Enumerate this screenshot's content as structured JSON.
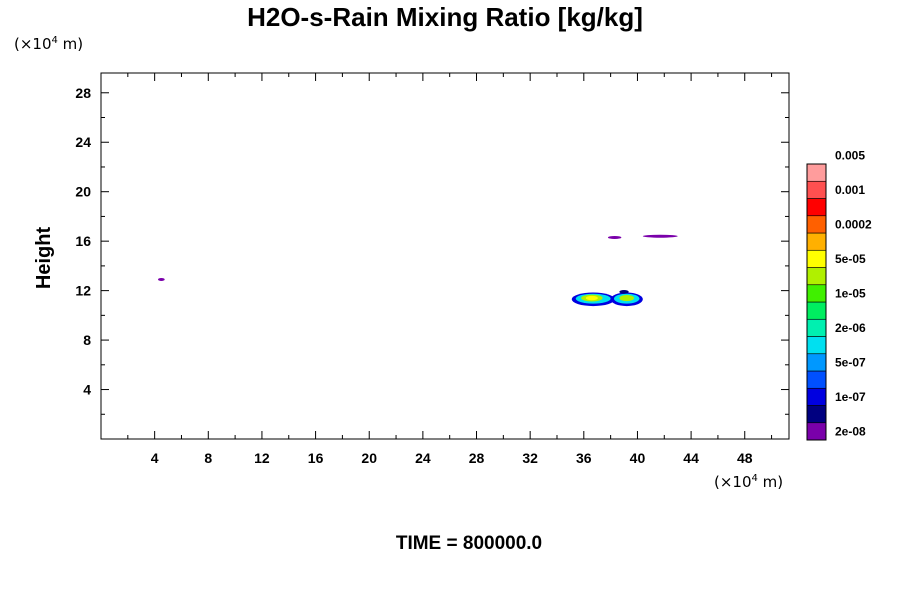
{
  "chart_data": {
    "type": "heatmap",
    "title": "H2O-s-Rain Mixing Ratio [kg/kg]",
    "ylabel": "Height",
    "x_unit": {
      "prefix": "(×10",
      "exponent": "4",
      "suffix": " m)"
    },
    "y_unit": {
      "prefix": "(×10",
      "exponent": "4",
      "suffix": " m)"
    },
    "xlim": [
      0,
      51.3
    ],
    "ylim": [
      0,
      29.6
    ],
    "x_ticks": [
      4,
      8,
      12,
      16,
      20,
      24,
      28,
      32,
      36,
      40,
      44,
      48
    ],
    "y_ticks": [
      4,
      8,
      12,
      16,
      20,
      24,
      28
    ],
    "colorbar": {
      "colors": [
        "#7a00aa",
        "#000080",
        "#0000e0",
        "#0050ff",
        "#0098ff",
        "#00e0f0",
        "#00f0b0",
        "#00ee60",
        "#40f000",
        "#b0f000",
        "#ffff00",
        "#ffb000",
        "#ff6000",
        "#ff0000",
        "#ff5050",
        "#ff9c9c"
      ],
      "labels": [
        "2e-08",
        "1e-07",
        "5e-07",
        "2e-06",
        "1e-05",
        "5e-05",
        "0.0002",
        "0.001",
        "0.005"
      ]
    },
    "features": [
      {
        "x_center": 4.5,
        "y_center": 12.9,
        "x_halfwidth": 0.25,
        "y_halfwidth": 0.12,
        "color_index": 0
      },
      {
        "x_center": 38.3,
        "y_center": 16.3,
        "x_halfwidth": 0.5,
        "y_halfwidth": 0.08,
        "color_index": 0
      },
      {
        "x_center": 41.7,
        "y_center": 16.4,
        "x_halfwidth": 1.3,
        "y_halfwidth": 0.1,
        "color_index": 0
      },
      {
        "x_center": 36.7,
        "y_center": 11.3,
        "x_halfwidth": 1.6,
        "y_halfwidth": 0.55,
        "color_index": 2
      },
      {
        "x_center": 36.7,
        "y_center": 11.35,
        "x_halfwidth": 1.3,
        "y_halfwidth": 0.4,
        "color_index": 5
      },
      {
        "x_center": 36.6,
        "y_center": 11.4,
        "x_halfwidth": 0.8,
        "y_halfwidth": 0.28,
        "color_index": 9
      },
      {
        "x_center": 36.6,
        "y_center": 11.4,
        "x_halfwidth": 0.45,
        "y_halfwidth": 0.18,
        "color_index": 10
      },
      {
        "x_center": 39.2,
        "y_center": 11.3,
        "x_halfwidth": 1.2,
        "y_halfwidth": 0.55,
        "color_index": 2
      },
      {
        "x_center": 39.2,
        "y_center": 11.35,
        "x_halfwidth": 0.95,
        "y_halfwidth": 0.4,
        "color_index": 5
      },
      {
        "x_center": 39.2,
        "y_center": 11.4,
        "x_halfwidth": 0.55,
        "y_halfwidth": 0.25,
        "color_index": 9
      },
      {
        "x_center": 39.0,
        "y_center": 11.9,
        "x_halfwidth": 0.35,
        "y_halfwidth": 0.15,
        "color_index": 1
      }
    ],
    "annotation": "TIME = 800000.0"
  }
}
